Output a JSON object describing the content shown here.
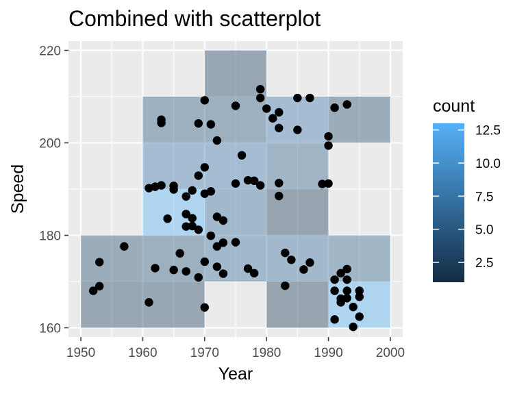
{
  "chart_data": {
    "type": "heatmap",
    "title": "Combined with scatterplot",
    "xlabel": "Year",
    "ylabel": "Speed",
    "xlim": [
      1948,
      2002
    ],
    "ylim": [
      158,
      222
    ],
    "x_ticks": [
      1950,
      1960,
      1970,
      1980,
      1990,
      2000
    ],
    "y_ticks": [
      160,
      180,
      200,
      220
    ],
    "grid": true,
    "bin_width_x": 10,
    "bin_height_y": 10,
    "legend": {
      "title": "count",
      "position": "right",
      "ticks": [
        2.5,
        5.0,
        7.5,
        10.0,
        12.5
      ],
      "tick_labels": [
        "2.5",
        "5.0",
        "7.5",
        "10.0",
        "12.5"
      ],
      "range": [
        1,
        13
      ],
      "color_low": "#132B43",
      "color_high": "#56B1F7"
    },
    "tile_alpha": 0.4,
    "tiles": [
      {
        "x": 1950,
        "y": 160,
        "count": 3
      },
      {
        "x": 1960,
        "y": 160,
        "count": 3
      },
      {
        "x": 1980,
        "y": 160,
        "count": 2
      },
      {
        "x": 1990,
        "y": 160,
        "count": 13
      },
      {
        "x": 1950,
        "y": 170,
        "count": 4
      },
      {
        "x": 1960,
        "y": 170,
        "count": 5
      },
      {
        "x": 1970,
        "y": 170,
        "count": 7
      },
      {
        "x": 1980,
        "y": 170,
        "count": 7
      },
      {
        "x": 1990,
        "y": 170,
        "count": 6
      },
      {
        "x": 1960,
        "y": 180,
        "count": 13
      },
      {
        "x": 1970,
        "y": 180,
        "count": 7
      },
      {
        "x": 1980,
        "y": 180,
        "count": 2
      },
      {
        "x": 1960,
        "y": 190,
        "count": 8
      },
      {
        "x": 1970,
        "y": 190,
        "count": 8
      },
      {
        "x": 1980,
        "y": 190,
        "count": 6
      },
      {
        "x": 1960,
        "y": 200,
        "count": 5
      },
      {
        "x": 1970,
        "y": 200,
        "count": 5
      },
      {
        "x": 1980,
        "y": 200,
        "count": 8
      },
      {
        "x": 1990,
        "y": 200,
        "count": 4
      },
      {
        "x": 1970,
        "y": 210,
        "count": 3
      }
    ],
    "points": [
      {
        "x": 1952,
        "y": 168.0
      },
      {
        "x": 1953,
        "y": 169.0
      },
      {
        "x": 1953,
        "y": 174.2
      },
      {
        "x": 1957,
        "y": 177.6
      },
      {
        "x": 1961,
        "y": 165.5
      },
      {
        "x": 1962,
        "y": 172.9
      },
      {
        "x": 1965,
        "y": 172.5
      },
      {
        "x": 1966,
        "y": 176.1
      },
      {
        "x": 1967,
        "y": 172.2
      },
      {
        "x": 1969,
        "y": 170.9
      },
      {
        "x": 1970,
        "y": 174.3
      },
      {
        "x": 1970,
        "y": 164.4
      },
      {
        "x": 1961,
        "y": 190.2
      },
      {
        "x": 1962,
        "y": 190.5
      },
      {
        "x": 1963,
        "y": 190.8
      },
      {
        "x": 1965,
        "y": 190.7
      },
      {
        "x": 1965,
        "y": 189.9
      },
      {
        "x": 1964,
        "y": 183.6
      },
      {
        "x": 1967,
        "y": 188.4
      },
      {
        "x": 1968,
        "y": 189.7
      },
      {
        "x": 1967,
        "y": 184.6
      },
      {
        "x": 1968,
        "y": 183.7
      },
      {
        "x": 1967,
        "y": 181.9
      },
      {
        "x": 1968,
        "y": 182.0
      },
      {
        "x": 1969,
        "y": 181.2
      },
      {
        "x": 1963,
        "y": 205.0
      },
      {
        "x": 1963,
        "y": 204.3
      },
      {
        "x": 1969,
        "y": 204.2
      },
      {
        "x": 1970,
        "y": 209.2
      },
      {
        "x": 1969,
        "y": 192.9
      },
      {
        "x": 1970,
        "y": 194.7
      },
      {
        "x": 1971,
        "y": 204.0
      },
      {
        "x": 1972,
        "y": 200.5
      },
      {
        "x": 1970,
        "y": 189.0
      },
      {
        "x": 1971,
        "y": 189.5
      },
      {
        "x": 1971,
        "y": 179.9
      },
      {
        "x": 1972,
        "y": 184.0
      },
      {
        "x": 1973,
        "y": 183.2
      },
      {
        "x": 1972,
        "y": 177.6
      },
      {
        "x": 1973,
        "y": 178.4
      },
      {
        "x": 1972,
        "y": 173.2
      },
      {
        "x": 1973,
        "y": 171.7
      },
      {
        "x": 1975,
        "y": 178.5
      },
      {
        "x": 1975,
        "y": 191.2
      },
      {
        "x": 1975,
        "y": 208.0
      },
      {
        "x": 1976,
        "y": 197.3
      },
      {
        "x": 1977,
        "y": 191.9
      },
      {
        "x": 1978,
        "y": 191.8
      },
      {
        "x": 1979,
        "y": 190.8
      },
      {
        "x": 1977,
        "y": 172.8
      },
      {
        "x": 1978,
        "y": 171.8
      },
      {
        "x": 1979,
        "y": 211.6
      },
      {
        "x": 1979,
        "y": 209.7
      },
      {
        "x": 1980,
        "y": 207.4
      },
      {
        "x": 1981,
        "y": 205.3
      },
      {
        "x": 1982,
        "y": 206.6
      },
      {
        "x": 1982,
        "y": 203.2
      },
      {
        "x": 1985,
        "y": 209.7
      },
      {
        "x": 1985,
        "y": 202.8
      },
      {
        "x": 1987,
        "y": 209.7
      },
      {
        "x": 1982,
        "y": 191.3
      },
      {
        "x": 1982,
        "y": 188.5
      },
      {
        "x": 1983,
        "y": 176.2
      },
      {
        "x": 1984,
        "y": 174.7
      },
      {
        "x": 1986,
        "y": 172.6
      },
      {
        "x": 1987,
        "y": 174.1
      },
      {
        "x": 1983,
        "y": 169.1
      },
      {
        "x": 1989,
        "y": 191.1
      },
      {
        "x": 1990,
        "y": 191.2
      },
      {
        "x": 1990,
        "y": 201.4
      },
      {
        "x": 1990,
        "y": 199.4
      },
      {
        "x": 1991,
        "y": 207.6
      },
      {
        "x": 1993,
        "y": 208.3
      },
      {
        "x": 1991,
        "y": 170.4
      },
      {
        "x": 1992,
        "y": 171.8
      },
      {
        "x": 1993,
        "y": 172.7
      },
      {
        "x": 1993,
        "y": 170.4
      },
      {
        "x": 1991,
        "y": 168.0
      },
      {
        "x": 1992,
        "y": 166.3
      },
      {
        "x": 1992,
        "y": 165.5
      },
      {
        "x": 1993,
        "y": 168.0
      },
      {
        "x": 1993,
        "y": 166.4
      },
      {
        "x": 1994,
        "y": 164.5
      },
      {
        "x": 1995,
        "y": 168.0
      },
      {
        "x": 1995,
        "y": 166.7
      },
      {
        "x": 1991,
        "y": 161.8
      },
      {
        "x": 1994,
        "y": 160.2
      },
      {
        "x": 1995,
        "y": 162.4
      }
    ]
  }
}
